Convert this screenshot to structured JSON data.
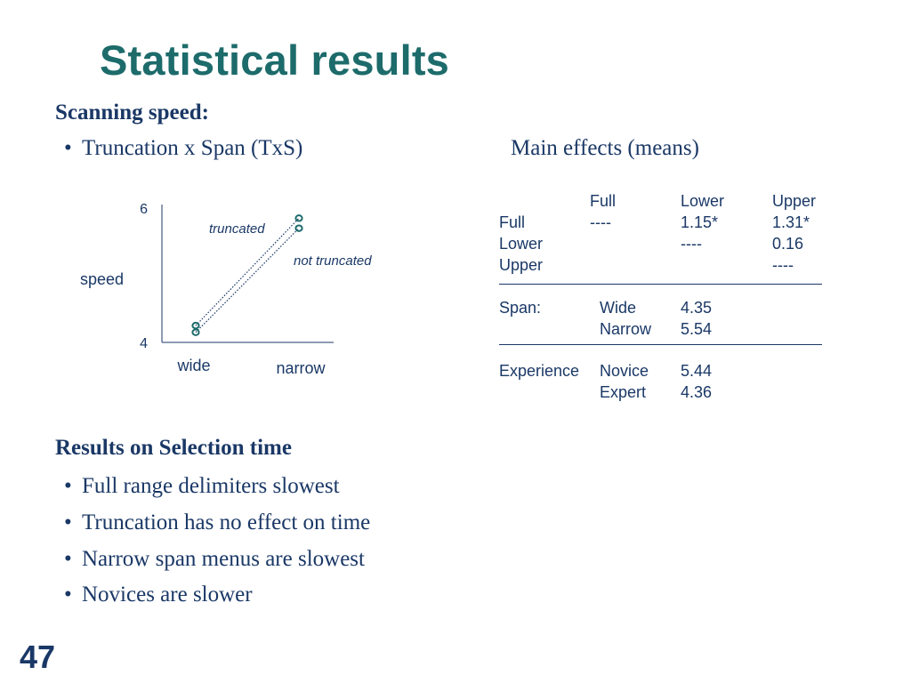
{
  "slide": {
    "title": "Statistical results",
    "page_number": "47"
  },
  "scanning": {
    "heading": "Scanning speed:",
    "bullet": "Truncation x Span (TxS)",
    "main_effects_caption": "Main effects (means)"
  },
  "chart_data": {
    "type": "line",
    "ylabel": "speed",
    "xlabel": "",
    "categories": [
      "wide",
      "narrow"
    ],
    "yticks": [
      "4",
      "6"
    ],
    "ylim": [
      4,
      6
    ],
    "series": [
      {
        "name": "truncated",
        "values": [
          4.25,
          5.85
        ]
      },
      {
        "name": "not truncated",
        "values": [
          4.15,
          5.7
        ]
      }
    ],
    "line_style": "dotted",
    "colors": {
      "line": "#1a3866",
      "marker": "#1d6b6b"
    }
  },
  "main_effects": {
    "header": [
      "",
      "Full",
      "Lower",
      "Upper"
    ],
    "rows": [
      [
        "Full",
        "----",
        "1.15*",
        "1.31*"
      ],
      [
        "Lower",
        "",
        "----",
        "0.16"
      ],
      [
        "Upper",
        "",
        "",
        "----"
      ]
    ],
    "span": {
      "label": "Span:",
      "rows": [
        [
          "Wide",
          "4.35"
        ],
        [
          "Narrow",
          "5.54"
        ]
      ]
    },
    "experience": {
      "label": "Experience",
      "rows": [
        [
          "Novice",
          "5.44"
        ],
        [
          "Expert",
          "4.36"
        ]
      ]
    }
  },
  "selection": {
    "heading": "Results on Selection time",
    "bullets": [
      "Full range delimiters slowest",
      "Truncation has no effect on time",
      "Narrow span menus are slowest",
      "Novices are slower"
    ]
  },
  "colors": {
    "title": "#1d6b6b",
    "text": "#1a3866",
    "background": "#ffffff"
  }
}
